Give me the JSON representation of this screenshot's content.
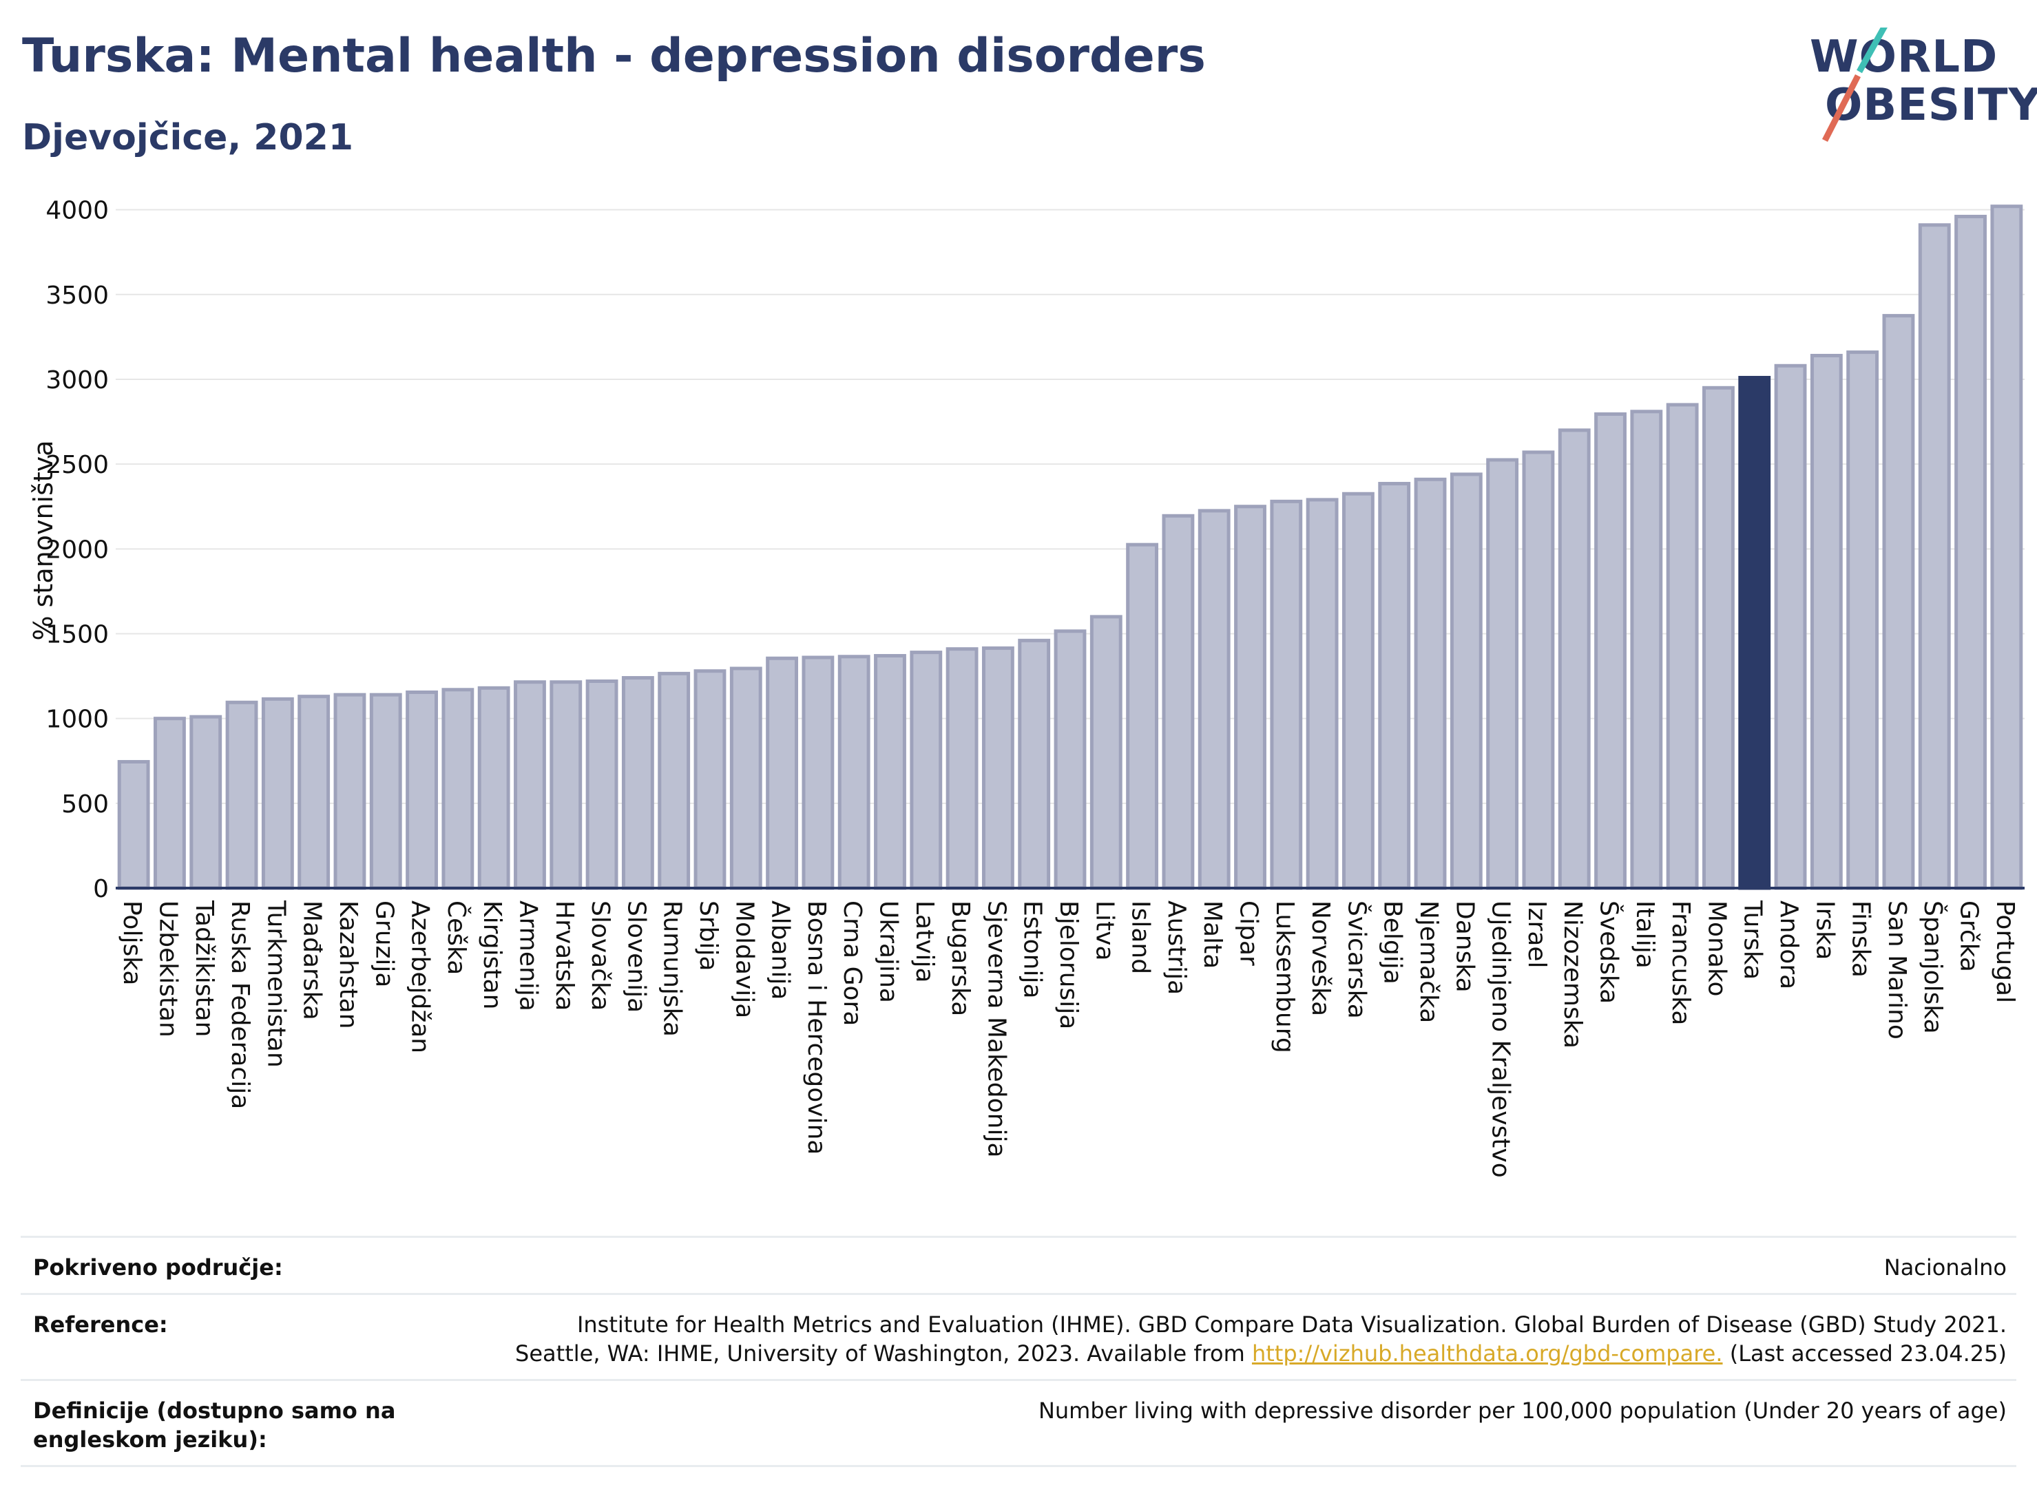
{
  "header": {
    "title": "Turska: Mental health - depression disorders",
    "subtitle": "Djevojčice, 2021"
  },
  "logo": {
    "line1": "WORLD",
    "line2": "OBESITY"
  },
  "chart_data": {
    "type": "bar",
    "ylabel": "% stanovništva",
    "ylim": [
      0,
      4100
    ],
    "yticks": [
      0,
      500,
      1000,
      1500,
      2000,
      2500,
      3000,
      3500,
      4000
    ],
    "grid": true,
    "highlight": "Turska",
    "colors": {
      "bar": "#bcc0d2",
      "bar_edge": "#9ea2bb",
      "highlight": "#2b3a67",
      "grid": "#e6e6e6",
      "axis": "#2b3a67"
    },
    "categories": [
      "Poljska",
      "Uzbekistan",
      "Tadžikistan",
      "Ruska Federacija",
      "Turkmenistan",
      "Mađarska",
      "Kazahstan",
      "Gruzija",
      "Azerbejdžan",
      "Češka",
      "Kirgistan",
      "Armenija",
      "Hrvatska",
      "Slovačka",
      "Slovenija",
      "Rumunjska",
      "Srbija",
      "Moldavija",
      "Albanija",
      "Bosna i Hercegovina",
      "Crna Gora",
      "Ukrajina",
      "Latvija",
      "Bugarska",
      "Sjeverna Makedonija",
      "Estonija",
      "Bjelorusija",
      "Litva",
      "Island",
      "Austrija",
      "Malta",
      "Cipar",
      "Luksemburg",
      "Norveška",
      "Švicarska",
      "Belgija",
      "Njemačka",
      "Danska",
      "Ujedinjeno Kraljevstvo",
      "Izrael",
      "Nizozemska",
      "Švedska",
      "Italija",
      "Francuska",
      "Monako",
      "Turska",
      "Andora",
      "Irska",
      "Finska",
      "San Marino",
      "Španjolska",
      "Grčka",
      "Portugal"
    ],
    "values": [
      745,
      1000,
      1010,
      1095,
      1115,
      1130,
      1140,
      1140,
      1155,
      1170,
      1180,
      1215,
      1215,
      1220,
      1240,
      1265,
      1280,
      1295,
      1355,
      1360,
      1365,
      1370,
      1390,
      1410,
      1415,
      1460,
      1515,
      1600,
      2025,
      2195,
      2225,
      2250,
      2280,
      2290,
      2325,
      2385,
      2410,
      2440,
      2525,
      2570,
      2700,
      2795,
      2810,
      2850,
      2950,
      3010,
      3080,
      3140,
      3160,
      3375,
      3910,
      3960,
      4020
    ]
  },
  "footer": {
    "coverage_label": "Pokriveno područje:",
    "coverage_value": "Nacionalno",
    "reference_label": "Reference:",
    "reference_line1": "Institute for Health Metrics and Evaluation (IHME). GBD Compare Data Visualization. Global Burden of Disease (GBD) Study 2021.",
    "reference_line2_pre": "Seattle, WA: IHME, University of Washington, 2023. Available from ",
    "reference_link": "http://vizhub.healthdata.org/gbd-compare.",
    "reference_line2_post": " (Last accessed 23.04.25)",
    "definition_label": "Definicije (dostupno samo na engleskom jeziku):",
    "definition_value": "Number living with depressive disorder per 100,000 population (Under 20 years of age)"
  }
}
